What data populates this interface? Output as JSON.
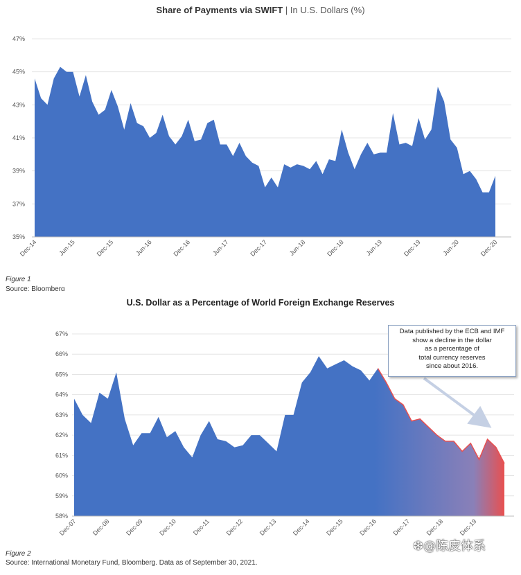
{
  "chart_data": [
    {
      "type": "area",
      "title": "Share of Payments via SWIFT",
      "subtitle": "In U.S. Dollars (%)",
      "title_separator": "|",
      "ylim": [
        35,
        47
      ],
      "yticks": [
        "47%",
        "45%",
        "43%",
        "41%",
        "39%",
        "37%",
        "35%"
      ],
      "xticks": [
        "Dec-14",
        "Jun-15",
        "Dec-15",
        "Jun-16",
        "Dec-16",
        "Jun-17",
        "Dec-17",
        "Jun-18",
        "Dec-18",
        "Jun-19",
        "Dec-19",
        "Jun-20",
        "Dec-20"
      ],
      "grid": true,
      "color": "#4472c4",
      "x_start": "Dec-14",
      "x_end": "Dec-20",
      "values": [
        44.6,
        43.4,
        43.0,
        44.6,
        45.3,
        45.0,
        45.0,
        43.5,
        44.8,
        43.2,
        42.4,
        42.7,
        43.9,
        42.9,
        41.5,
        43.1,
        41.9,
        41.7,
        41.0,
        41.3,
        42.4,
        41.1,
        40.6,
        41.1,
        42.1,
        40.8,
        40.9,
        41.9,
        42.1,
        40.6,
        40.6,
        39.9,
        40.7,
        39.9,
        39.5,
        39.3,
        38.0,
        38.6,
        38.0,
        39.4,
        39.2,
        39.4,
        39.3,
        39.1,
        39.6,
        38.8,
        39.7,
        39.6,
        41.5,
        40.1,
        39.1,
        40.0,
        40.7,
        40.0,
        40.1,
        40.1,
        42.5,
        40.6,
        40.7,
        40.5,
        42.2,
        40.9,
        41.5,
        44.1,
        43.2,
        40.9,
        40.4,
        38.8,
        39.0,
        38.5,
        37.7,
        37.7,
        38.7
      ]
    },
    {
      "type": "area",
      "title": "U.S. Dollar as a Percentage of World Foreign Exchange Reserves",
      "ylim": [
        58,
        67
      ],
      "yticks": [
        "67%",
        "66%",
        "65%",
        "64%",
        "63%",
        "62%",
        "61%",
        "60%",
        "59%",
        "58%"
      ],
      "xticks": [
        "Dec-07",
        "Dec-08",
        "Dec-09",
        "Dec-10",
        "Dec-11",
        "Dec-12",
        "Dec-13",
        "Dec-14",
        "Dec-15",
        "Dec-16",
        "Dec-17",
        "Dec-18",
        "Dec-19"
      ],
      "grid": true,
      "color": "#4472c4",
      "highlight_color": "#e85050",
      "highlight_from": "Dec-16",
      "x_start": "Dec-07",
      "x_end": "Jun-21",
      "values": [
        63.8,
        63.0,
        62.6,
        64.1,
        63.8,
        65.1,
        62.8,
        61.5,
        62.1,
        62.1,
        62.9,
        61.9,
        62.2,
        61.4,
        60.9,
        62.0,
        62.7,
        61.8,
        61.7,
        61.4,
        61.5,
        62.0,
        62.0,
        61.6,
        61.2,
        63.0,
        63.0,
        64.6,
        65.1,
        65.9,
        65.3,
        65.5,
        65.7,
        65.4,
        65.2,
        64.7,
        65.3,
        64.6,
        63.8,
        63.5,
        62.7,
        62.8,
        62.4,
        62.0,
        61.7,
        61.7,
        61.2,
        61.6,
        60.8,
        61.8,
        61.4,
        60.6
      ],
      "annotation": [
        "Data published by the ECB and IMF",
        "show a decline in the dollar",
        "as a percentage of",
        "total currency reserves",
        "since about 2016."
      ]
    }
  ],
  "captions": {
    "fig1_label": "Figure 1",
    "fig1_source": "Source: Bloomberg",
    "fig2_label": "Figure 2",
    "fig2_source": "Source: International Monetary Fund, Bloomberg. Data as of September 30, 2021."
  },
  "watermark": "❆@陈皮体系"
}
